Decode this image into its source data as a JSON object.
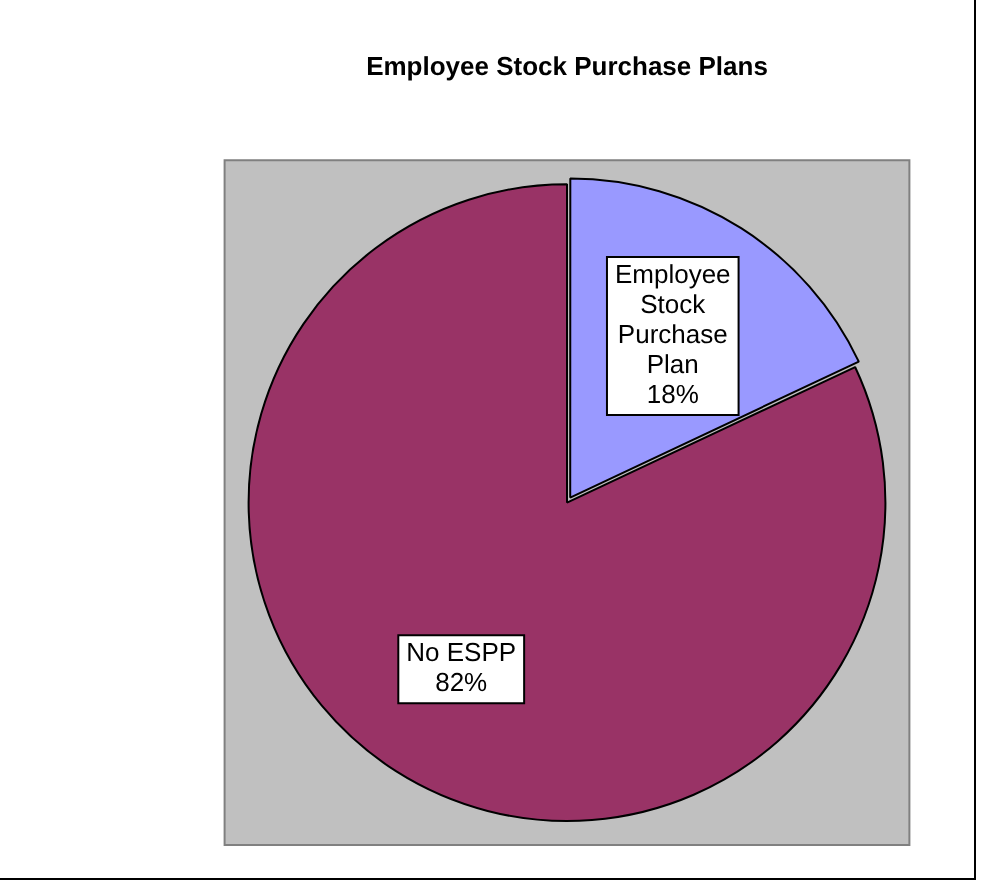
{
  "chart_data": {
    "type": "pie",
    "title": "Employee Stock Purchase Plans",
    "categories": [
      "Employee Stock Purchase Plan",
      "No ESPP"
    ],
    "values": [
      18,
      82
    ],
    "colors": [
      "#9999ff",
      "#993366"
    ],
    "value_labels": [
      "18%",
      "82%"
    ],
    "legend": false
  }
}
